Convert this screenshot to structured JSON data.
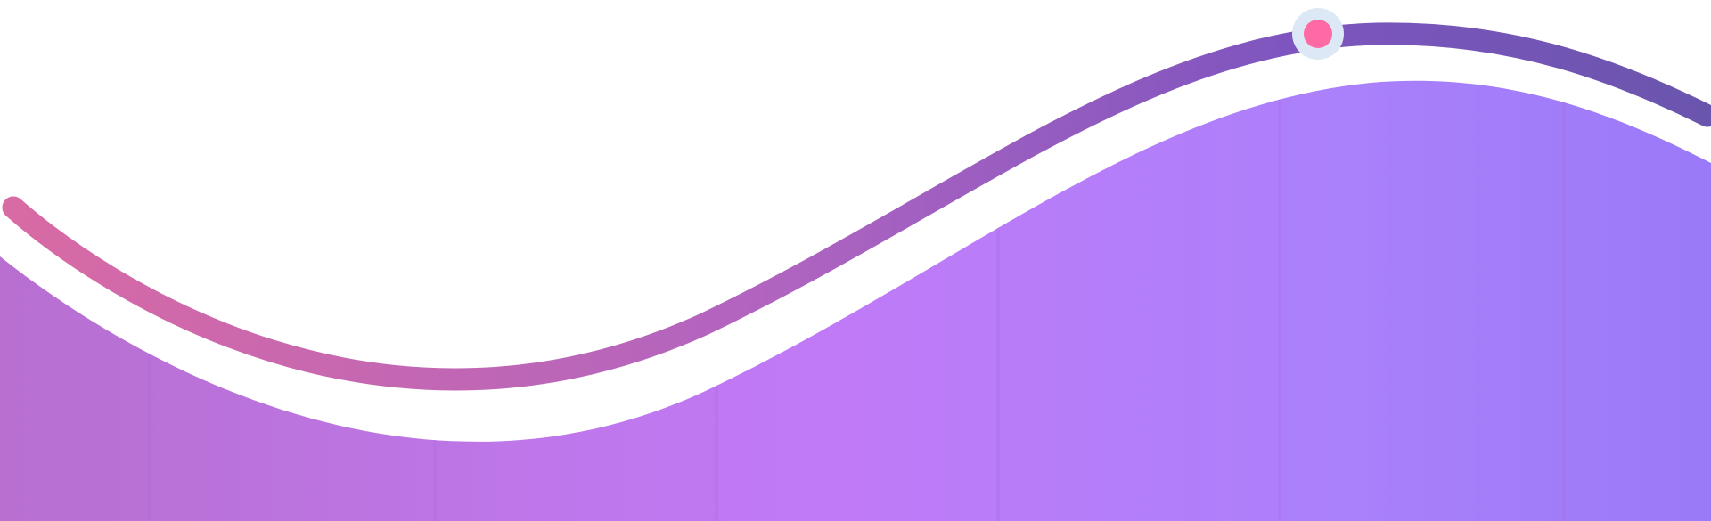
{
  "theme": {
    "background": "#ffffff",
    "area_gradient": [
      "#b86fd0",
      "#c17af7",
      "#ab80fb",
      "#9a7af8"
    ],
    "line_gradient": [
      "#d86aa4",
      "#b064c0",
      "#7e55bf",
      "#6a55ad"
    ],
    "grid_color": "#a86be0",
    "marker_fill": "#ff69a4",
    "marker_halo": "#dce8f6"
  },
  "decoration": {
    "type": "wave-chart-graphic",
    "vertical_guides": 6,
    "highlight_marker": "pink-dot-with-halo"
  }
}
